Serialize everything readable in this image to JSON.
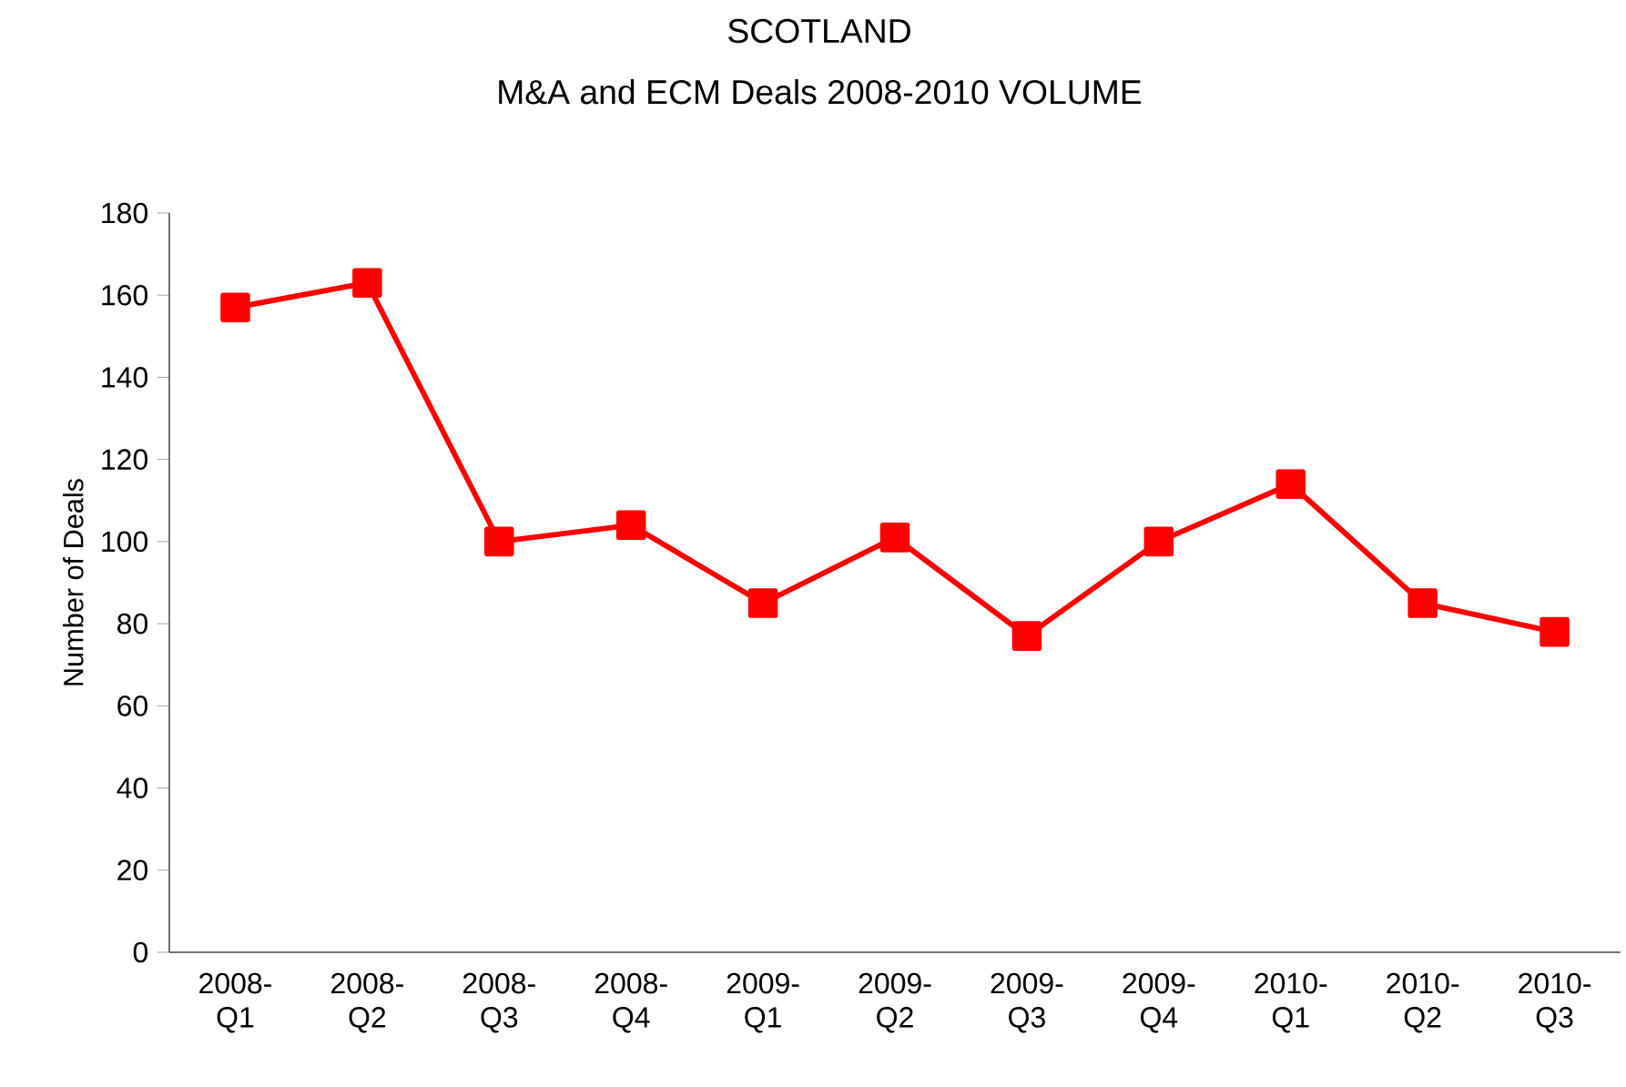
{
  "chart_data": {
    "type": "line",
    "title": "SCOTLAND",
    "subtitle": "M&A and ECM Deals 2008-2010 VOLUME",
    "ylabel": "Number of Deals",
    "categories": [
      "2008-Q1",
      "2008-Q2",
      "2008-Q3",
      "2008-Q4",
      "2009-Q1",
      "2009-Q2",
      "2009-Q3",
      "2009-Q4",
      "2010-Q1",
      "2010-Q2",
      "2010-Q3"
    ],
    "series": [
      {
        "color": "#ff0000",
        "values": [
          157,
          163,
          100,
          104,
          85,
          101,
          77,
          100,
          114,
          85,
          78
        ]
      }
    ],
    "ylim": [
      0,
      180
    ],
    "yticks": [
      0,
      20,
      40,
      60,
      80,
      100,
      120,
      140,
      160,
      180
    ],
    "marker": "square",
    "line_style": "solid"
  }
}
